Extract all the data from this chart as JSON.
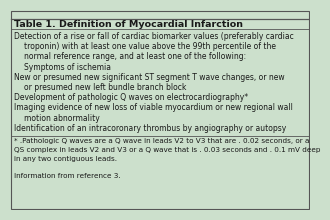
{
  "title": "Table 1. Definition of Myocardial Infarction",
  "bg_color": "#cce0cc",
  "title_line_color": "#555555",
  "text_color": "#1a1a1a",
  "title_font_size": 6.8,
  "body_font_size": 5.5,
  "footnote_font_size": 5.2,
  "body_lines": [
    {
      "text": "Detection of a rise or fall of cardiac biomarker values (preferably cardiac",
      "indent": 0
    },
    {
      "text": "troponin) with at least one value above the 99th percentile of the",
      "indent": 1
    },
    {
      "text": "normal reference range, and at least one of the following:",
      "indent": 1
    },
    {
      "text": "Symptoms of ischemia",
      "indent": 1
    },
    {
      "text": "New or presumed new significant ST segment T wave changes, or new",
      "indent": 0
    },
    {
      "text": "or presumed new left bundle branch block",
      "indent": 1
    },
    {
      "text": "Development of pathologic Q waves on electrocardiography*",
      "indent": 0
    },
    {
      "text": "Imaging evidence of new loss of viable myocardium or new regional wall",
      "indent": 0
    },
    {
      "text": "motion abnormality",
      "indent": 1
    },
    {
      "text": "Identification of an intracoronary thrombus by angiography or autopsy",
      "indent": 0
    }
  ],
  "footnote_lines": [
    "* .Pathologic Q waves are a Q wave in leads V2 to V3 that are . 0.02 seconds, or a",
    "QS complex in leads V2 and V3 or a Q wave that is . 0.03 seconds and . 0.1 mV deep",
    "in any two contiguous leads.",
    "",
    "Information from reference 3."
  ]
}
